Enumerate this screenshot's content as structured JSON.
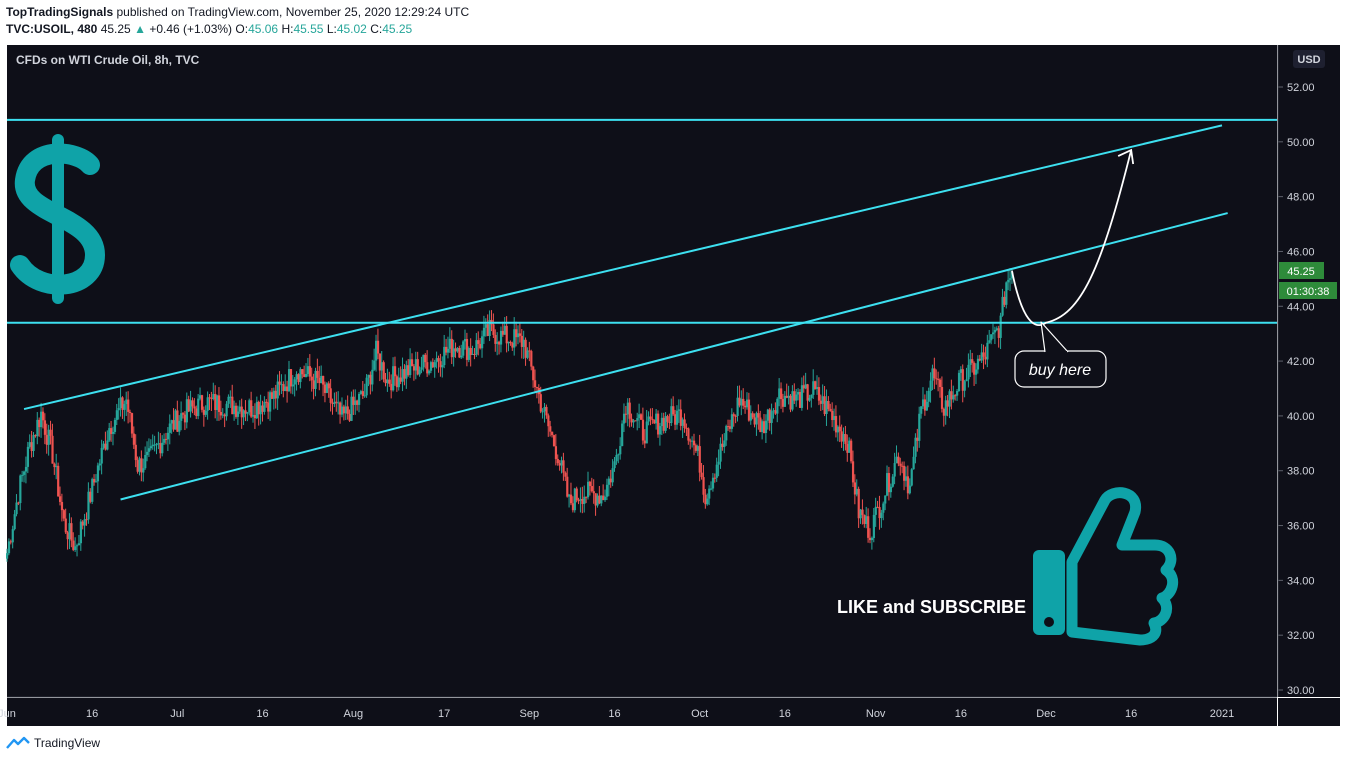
{
  "header": {
    "publisher": "TopTradingSignals",
    "published_text": "published on TradingView.com, November 25, 2020 12:29:24 UTC",
    "symbol": "TVC:USOIL, 480",
    "last": "45.25",
    "change": "+0.46 (+1.03%)",
    "o_label": "O:",
    "o": "45.06",
    "h_label": "H:",
    "h": "45.55",
    "l_label": "L:",
    "l": "45.02",
    "c_label": "C:",
    "c": "45.25"
  },
  "chart_title": "CFDs on WTI Crude Oil, 8h, TVC",
  "currency": "USD",
  "price_badge": "45.25",
  "time_badge": "01:30:38",
  "annotation_buy": "buy here",
  "annotation_cta": "LIKE and SUBSCRIBE",
  "footer_brand": "TradingView",
  "colors": {
    "background": "#0e0f18",
    "up": "#26a69a",
    "down": "#ef5350",
    "lines": "#3de0f0",
    "icon": "#0fa3a8",
    "badge": "#2e8b3a"
  },
  "chart_data": {
    "type": "candlestick",
    "title": "CFDs on WTI Crude Oil, 8h, TVC",
    "ylabel": "USD",
    "ylim": [
      30,
      53
    ],
    "y_ticks": [
      "52.00",
      "50.00",
      "48.00",
      "46.00",
      "44.00",
      "42.00",
      "40.00",
      "38.00",
      "36.00",
      "34.00",
      "32.00",
      "30.00"
    ],
    "x_ticks": [
      "Jun",
      "16",
      "Jul",
      "16",
      "Aug",
      "17",
      "Sep",
      "16",
      "Oct",
      "16",
      "Nov",
      "16",
      "Dec",
      "16",
      "2021"
    ],
    "close_path": [
      [
        "2020-06-01",
        35.0
      ],
      [
        "2020-06-03",
        37.2
      ],
      [
        "2020-06-05",
        38.9
      ],
      [
        "2020-06-07",
        40.1
      ],
      [
        "2020-06-09",
        38.6
      ],
      [
        "2020-06-11",
        36.1
      ],
      [
        "2020-06-13",
        35.2
      ],
      [
        "2020-06-15",
        36.6
      ],
      [
        "2020-06-17",
        38.1
      ],
      [
        "2020-06-19",
        39.6
      ],
      [
        "2020-06-22",
        40.6
      ],
      [
        "2020-06-24",
        38.2
      ],
      [
        "2020-06-26",
        38.4
      ],
      [
        "2020-06-29",
        39.4
      ],
      [
        "2020-07-02",
        40.1
      ],
      [
        "2020-07-06",
        40.5
      ],
      [
        "2020-07-10",
        40.4
      ],
      [
        "2020-07-14",
        40.3
      ],
      [
        "2020-07-18",
        40.7
      ],
      [
        "2020-07-22",
        41.7
      ],
      [
        "2020-07-26",
        41.2
      ],
      [
        "2020-07-30",
        39.9
      ],
      [
        "2020-08-03",
        40.8
      ],
      [
        "2020-08-05",
        42.3
      ],
      [
        "2020-08-07",
        41.3
      ],
      [
        "2020-08-11",
        41.7
      ],
      [
        "2020-08-15",
        42.0
      ],
      [
        "2020-08-19",
        42.6
      ],
      [
        "2020-08-22",
        42.4
      ],
      [
        "2020-08-25",
        43.1
      ],
      [
        "2020-08-27",
        42.9
      ],
      [
        "2020-08-31",
        42.7
      ],
      [
        "2020-09-02",
        41.2
      ],
      [
        "2020-09-04",
        39.8
      ],
      [
        "2020-09-06",
        38.6
      ],
      [
        "2020-09-08",
        36.8
      ],
      [
        "2020-09-10",
        37.2
      ],
      [
        "2020-09-14",
        37.1
      ],
      [
        "2020-09-16",
        38.2
      ],
      [
        "2020-09-18",
        40.5
      ],
      [
        "2020-09-21",
        39.4
      ],
      [
        "2020-09-24",
        39.8
      ],
      [
        "2020-09-28",
        40.1
      ],
      [
        "2020-10-01",
        38.3
      ],
      [
        "2020-10-02",
        37.1
      ],
      [
        "2020-10-05",
        38.9
      ],
      [
        "2020-10-08",
        40.6
      ],
      [
        "2020-10-12",
        39.6
      ],
      [
        "2020-10-15",
        40.8
      ],
      [
        "2020-10-18",
        40.6
      ],
      [
        "2020-10-21",
        40.9
      ],
      [
        "2020-10-24",
        40.1
      ],
      [
        "2020-10-27",
        39.1
      ],
      [
        "2020-10-29",
        36.5
      ],
      [
        "2020-10-31",
        35.8
      ],
      [
        "2020-11-02",
        36.9
      ],
      [
        "2020-11-05",
        38.6
      ],
      [
        "2020-11-07",
        37.4
      ],
      [
        "2020-11-09",
        40.2
      ],
      [
        "2020-11-11",
        41.5
      ],
      [
        "2020-11-13",
        40.3
      ],
      [
        "2020-11-16",
        41.3
      ],
      [
        "2020-11-18",
        41.7
      ],
      [
        "2020-11-20",
        42.1
      ],
      [
        "2020-11-23",
        43.4
      ],
      [
        "2020-11-24",
        44.9
      ],
      [
        "2020-11-25",
        45.25
      ]
    ],
    "drawings": {
      "horizontal_levels": [
        50.8,
        43.4
      ],
      "channel_upper": [
        [
          "2020-06-04",
          40.25
        ],
        [
          "2021-01-01",
          50.6
        ]
      ],
      "channel_lower": [
        [
          "2020-06-21",
          36.95
        ],
        [
          "2021-01-02",
          47.4
        ]
      ]
    },
    "last_price": 45.25,
    "timer": "01:30:38"
  }
}
